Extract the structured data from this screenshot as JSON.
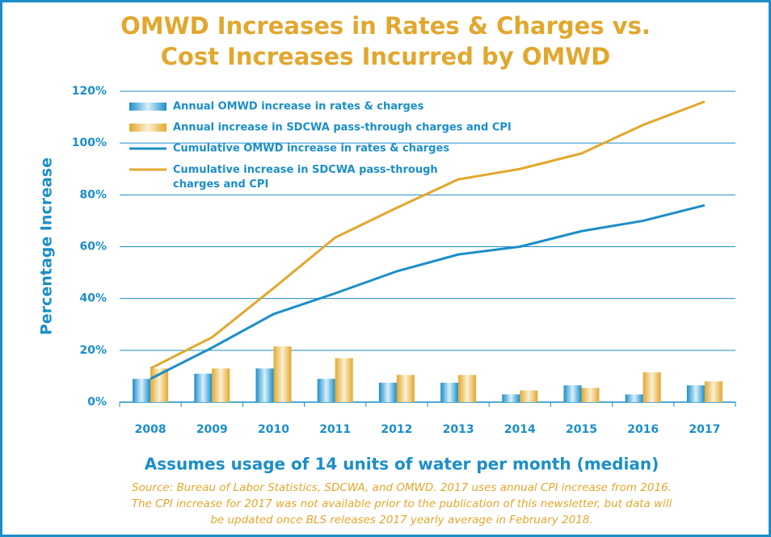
{
  "chart_data": {
    "type": "bar-line",
    "title": [
      "OMWD Increases in Rates & Charges vs.",
      "Cost Increases Incurred by OMWD"
    ],
    "y_label": "Percentage Increase",
    "subtitle": "Assumes usage of 14 units of water per month (median)",
    "source": [
      "Source: Bureau of Labor Statistics, SDCWA, and OMWD. 2017 uses annual CPI increase from 2016.",
      "The CPI increase for 2017 was not available prior to the publication of this newsletter, but data will",
      "be updated once BLS releases 2017 yearly average in February 2018."
    ],
    "categories": [
      "2008",
      "2009",
      "2010",
      "2011",
      "2012",
      "2013",
      "2014",
      "2015",
      "2016",
      "2017"
    ],
    "series": [
      {
        "name": "Annual OMWD increase in rates & charges",
        "kind": "bar",
        "color": "#1b8ec9",
        "values": [
          9,
          11,
          13,
          9,
          7.5,
          7.5,
          3,
          6.5,
          3,
          6.5
        ]
      },
      {
        "name": "Annual increase in SDCWA pass-through charges and CPI",
        "kind": "bar",
        "color": "#e2a72e",
        "values": [
          13,
          13,
          21.5,
          17,
          10.5,
          10.5,
          4.5,
          5.5,
          11.5,
          8
        ]
      },
      {
        "name": "Cumulative OMWD increase in rates & charges",
        "kind": "line",
        "color": "#1b8ec9",
        "values": [
          9,
          21,
          34,
          42,
          50.5,
          57,
          60,
          66,
          70,
          76
        ]
      },
      {
        "name": "Cumulative increase in SDCWA pass-through charges and CPI",
        "kind": "line",
        "color": "#e2a72e",
        "values": [
          13,
          25,
          44,
          63.5,
          75,
          86,
          90,
          96,
          107,
          116
        ]
      }
    ],
    "ylim": [
      0,
      120
    ],
    "yticks": [
      {
        "value": 0,
        "label": "0%"
      },
      {
        "value": 20,
        "label": "20%"
      },
      {
        "value": 40,
        "label": "40%"
      },
      {
        "value": 60,
        "label": "60%"
      },
      {
        "value": 80,
        "label": "80%"
      },
      {
        "value": 100,
        "label": "100%"
      },
      {
        "value": 120,
        "label": "120%"
      }
    ],
    "grid": true
  }
}
